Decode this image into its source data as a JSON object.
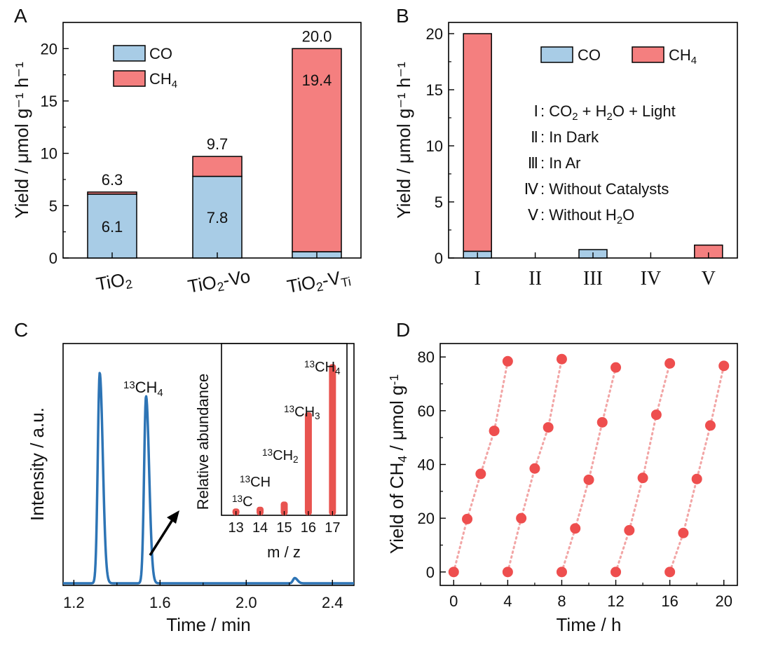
{
  "figure": {
    "panel_labels": [
      "A",
      "B",
      "C",
      "D"
    ]
  },
  "chart_data": [
    {
      "panel": "A",
      "type": "bar",
      "stacked": true,
      "categories": [
        {
          "base": "TiO",
          "sub": "2",
          "rest": "",
          "rest_sub": ""
        },
        {
          "base": "TiO",
          "sub": "2",
          "rest": "-Vo",
          "rest_sub": ""
        },
        {
          "base": "TiO",
          "sub": "2",
          "rest": "-V",
          "rest_sub": "Ti"
        }
      ],
      "series": [
        {
          "name": "CO",
          "label_base": "CO",
          "label_sub": "",
          "color": "#a8cce6",
          "values": [
            6.1,
            7.8,
            0.6
          ]
        },
        {
          "name": "CH4",
          "label_base": "CH",
          "label_sub": "4",
          "color": "#f47f7f",
          "values": [
            0.2,
            1.9,
            19.4
          ]
        }
      ],
      "totals": [
        "6.3",
        "9.7",
        "20.0"
      ],
      "inner_labels": [
        {
          "text": "6.1",
          "bar": 0,
          "at": 3.0
        },
        {
          "text": "7.8",
          "bar": 1,
          "at": 3.9
        },
        {
          "text": "19.4",
          "bar": 2,
          "at": 17.0
        }
      ],
      "ylabel": "Yield / μmol g⁻¹ h⁻¹",
      "ylim": [
        0,
        22.5
      ],
      "yticks": [
        0,
        5,
        10,
        15,
        20
      ]
    },
    {
      "panel": "B",
      "type": "bar",
      "stacked": true,
      "categories": [
        "I",
        "II",
        "III",
        "IV",
        "V"
      ],
      "series": [
        {
          "name": "CO",
          "label_base": "CO",
          "label_sub": "",
          "color": "#a8cce6",
          "values": [
            0.6,
            0,
            0.75,
            0,
            0
          ]
        },
        {
          "name": "CH4",
          "label_base": "CH",
          "label_sub": "4",
          "color": "#f47f7f",
          "values": [
            19.4,
            0,
            0,
            0,
            1.15
          ]
        }
      ],
      "ylabel": "Yield / μmol g⁻¹ h⁻¹",
      "ylim": [
        0,
        21
      ],
      "yticks": [
        0,
        5,
        10,
        15,
        20
      ],
      "conditions": [
        {
          "numeral": "Ⅰ",
          "parts": [
            [
              ": CO",
              ""
            ],
            [
              "2",
              "sub"
            ],
            [
              " + H",
              ""
            ],
            [
              "2",
              "sub"
            ],
            [
              "O + Light",
              ""
            ]
          ]
        },
        {
          "numeral": "Ⅱ",
          "parts": [
            [
              ": In Dark",
              ""
            ]
          ]
        },
        {
          "numeral": "Ⅲ",
          "parts": [
            [
              ": In Ar",
              ""
            ]
          ]
        },
        {
          "numeral": "Ⅳ",
          "parts": [
            [
              ": Without Catalysts",
              ""
            ]
          ]
        },
        {
          "numeral": "Ⅴ",
          "parts": [
            [
              ": Without H",
              ""
            ],
            [
              "2",
              "sub"
            ],
            [
              "O",
              ""
            ]
          ]
        }
      ]
    },
    {
      "panel": "C",
      "type": "line",
      "xlabel": "Time / min",
      "ylabel": "Intensity / a.u.",
      "xlim": [
        1.15,
        2.5
      ],
      "ylim": [
        0,
        1.15
      ],
      "xticks": [
        "1.2",
        "1.6",
        "2.0",
        "2.4"
      ],
      "color": "#2d74b5",
      "peaks": [
        {
          "x": 1.32,
          "height": 1.0,
          "width": 0.009
        },
        {
          "x": 1.535,
          "height": 0.89,
          "width": 0.009
        },
        {
          "x": 2.225,
          "height": 0.025,
          "width": 0.008
        }
      ],
      "baseline": 0.01,
      "peak_label": {
        "sup": "13",
        "base": "CH",
        "sub": "4"
      },
      "inset": {
        "type": "bar",
        "xlabel": "m / z",
        "ylabel": "Relative abundance",
        "x": [
          13,
          14,
          15,
          16,
          17
        ],
        "values": [
          0.04,
          0.05,
          0.08,
          0.6,
          0.88
        ],
        "color": "#e8534f",
        "ylim": [
          0,
          1
        ],
        "labels": [
          {
            "sup": "13",
            "base": "C",
            "sub": ""
          },
          {
            "sup": "13",
            "base": "CH",
            "sub": ""
          },
          {
            "sup": "13",
            "base": "CH",
            "sub": "2"
          },
          {
            "sup": "13",
            "base": "CH",
            "sub": "3"
          },
          {
            "sup": "13",
            "base": "CH",
            "sub": "4"
          }
        ]
      }
    },
    {
      "panel": "D",
      "type": "scatter",
      "xlabel": "Time / h",
      "ylabel_parts": [
        [
          "Yield of CH",
          ""
        ],
        [
          "4",
          "sub"
        ],
        [
          " / μmol g",
          ""
        ],
        [
          "-1",
          "sup"
        ]
      ],
      "xlim": [
        -1,
        21
      ],
      "ylim": [
        -5,
        85
      ],
      "xticks": [
        0,
        4,
        8,
        12,
        16,
        20
      ],
      "yticks": [
        0,
        20,
        40,
        60,
        80
      ],
      "marker_color": "#ee4e4e",
      "line_color": "#f2a5a5",
      "cycles": [
        [
          [
            0,
            0
          ],
          [
            1,
            19.7
          ],
          [
            2,
            36.5
          ],
          [
            3,
            52.5
          ],
          [
            4,
            78.4
          ]
        ],
        [
          [
            4,
            0
          ],
          [
            5,
            20
          ],
          [
            6,
            38.5
          ],
          [
            7,
            53.8
          ],
          [
            8,
            79.2
          ]
        ],
        [
          [
            8,
            0
          ],
          [
            9,
            16.2
          ],
          [
            10,
            34.3
          ],
          [
            11,
            55.7
          ],
          [
            12,
            76.1
          ]
        ],
        [
          [
            12,
            0
          ],
          [
            13,
            15.5
          ],
          [
            14,
            35
          ],
          [
            15,
            58.5
          ],
          [
            16,
            77.6
          ]
        ],
        [
          [
            16,
            0
          ],
          [
            17,
            14.5
          ],
          [
            18,
            34.6
          ],
          [
            19,
            54.5
          ],
          [
            20,
            76.7
          ]
        ]
      ]
    }
  ]
}
